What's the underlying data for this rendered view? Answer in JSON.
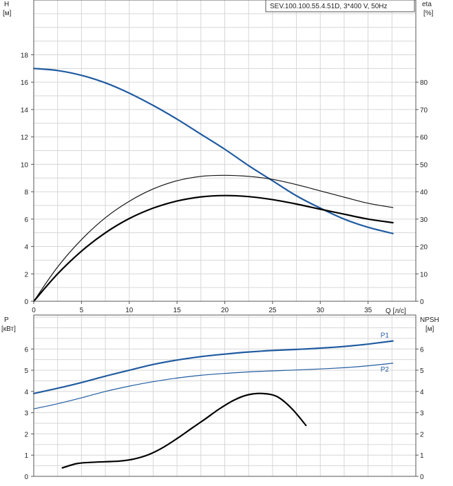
{
  "legend_box": "SEV.100.100.55.4.51D, 3*400 V, 50Hz",
  "chart_data": [
    {
      "type": "line",
      "title": "",
      "legend": "SEV.100.100.55.4.51D, 3*400 V, 50Hz",
      "xlabel": "Q [л/с]",
      "xlim": [
        0,
        40
      ],
      "xticks": [
        0,
        5,
        10,
        15,
        20,
        25,
        30,
        35
      ],
      "grid": true,
      "y_axes": {
        "left": {
          "label_top": "H",
          "label_unit": "[м]",
          "lim": [
            0,
            22
          ],
          "ticks": [
            0,
            2,
            4,
            6,
            8,
            10,
            12,
            14,
            16,
            18
          ]
        },
        "right": {
          "label_top": "eta",
          "label_unit": "[%]",
          "lim": [
            0,
            110
          ],
          "ticks": [
            0,
            10,
            20,
            30,
            40,
            50,
            60,
            70,
            80
          ]
        }
      },
      "series": [
        {
          "axis": "left",
          "color": "#1f5aa0",
          "width": 2.2,
          "x": [
            0,
            2.5,
            5,
            7.5,
            10,
            12.5,
            15,
            17.5,
            20,
            22.5,
            25,
            27.5,
            30,
            32.5,
            35,
            37.6
          ],
          "y": [
            17.0,
            16.85,
            16.5,
            15.95,
            15.2,
            14.3,
            13.3,
            12.2,
            11.1,
            9.9,
            8.8,
            7.7,
            6.8,
            6.0,
            5.4,
            4.95
          ]
        },
        {
          "axis": "right",
          "color": "#111111",
          "width": 1.2,
          "x": [
            0,
            2.5,
            5,
            7.5,
            10,
            12.5,
            15,
            17.5,
            20,
            22.5,
            25,
            27.5,
            30,
            32.5,
            35,
            37.6
          ],
          "y": [
            0,
            12.5,
            22.5,
            30.5,
            36.5,
            41.0,
            44.0,
            45.6,
            46.0,
            45.6,
            44.5,
            42.6,
            40.3,
            38.0,
            35.8,
            34.2
          ]
        },
        {
          "axis": "right",
          "color": "#000000",
          "width": 2.2,
          "x": [
            0,
            2.5,
            5,
            7.5,
            10,
            12.5,
            15,
            17.5,
            20,
            22.5,
            25,
            27.5,
            30,
            32.5,
            35,
            37.6
          ],
          "y": [
            0,
            10.0,
            18.3,
            25.0,
            30.2,
            34.0,
            36.6,
            38.1,
            38.6,
            38.2,
            37.1,
            35.5,
            33.6,
            31.8,
            30.0,
            28.7
          ]
        }
      ]
    },
    {
      "type": "line",
      "title": "",
      "xlim": [
        0,
        40
      ],
      "grid": true,
      "y_axes": {
        "left": {
          "label_top": "P",
          "label_unit": "[кВт]",
          "lim": [
            0,
            7.6
          ],
          "ticks": [
            0,
            1,
            2,
            3,
            4,
            5,
            6
          ]
        },
        "right": {
          "label_top": "NPSH",
          "label_unit": "[м]",
          "lim": [
            0,
            7.6
          ],
          "ticks": [
            0,
            1,
            2,
            3,
            4,
            5,
            6
          ]
        }
      },
      "series": [
        {
          "name": "P1",
          "axis": "left",
          "color": "#1f5aa0",
          "width": 2.2,
          "x": [
            0,
            2.5,
            5,
            7.5,
            10,
            12.5,
            15,
            17.5,
            20,
            22.5,
            25,
            27.5,
            30,
            32.5,
            35,
            37.6
          ],
          "y": [
            3.9,
            4.15,
            4.42,
            4.72,
            5.0,
            5.27,
            5.48,
            5.64,
            5.76,
            5.86,
            5.93,
            5.98,
            6.04,
            6.12,
            6.23,
            6.38
          ]
        },
        {
          "name": "P2",
          "axis": "left",
          "color": "#1f5aa0",
          "width": 1.2,
          "x": [
            0,
            2.5,
            5,
            7.5,
            10,
            12.5,
            15,
            17.5,
            20,
            22.5,
            25,
            27.5,
            30,
            32.5,
            35,
            37.6
          ],
          "y": [
            3.18,
            3.42,
            3.7,
            4.0,
            4.25,
            4.46,
            4.63,
            4.76,
            4.85,
            4.92,
            4.97,
            5.01,
            5.06,
            5.12,
            5.21,
            5.33
          ]
        },
        {
          "axis": "right",
          "color": "#000000",
          "width": 2.2,
          "x": [
            3.0,
            4.5,
            6.0,
            7.5,
            9.0,
            10.5,
            12.0,
            13.5,
            15.0,
            16.5,
            18.0,
            19.5,
            21.0,
            22.5,
            24.0,
            25.5,
            27.0,
            28.5
          ],
          "y": [
            0.4,
            0.6,
            0.66,
            0.69,
            0.72,
            0.82,
            1.02,
            1.35,
            1.78,
            2.25,
            2.72,
            3.2,
            3.6,
            3.85,
            3.9,
            3.75,
            3.2,
            2.4
          ]
        }
      ]
    }
  ]
}
